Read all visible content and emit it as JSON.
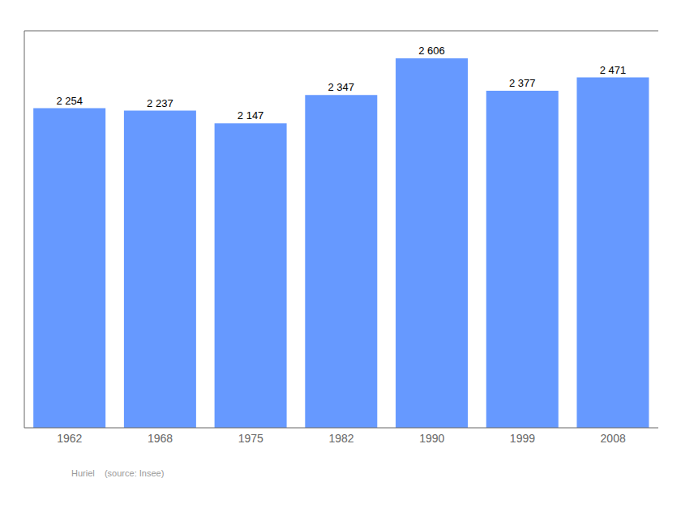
{
  "chart_data": {
    "type": "bar",
    "categories": [
      "1962",
      "1968",
      "1975",
      "1982",
      "1990",
      "1999",
      "2008"
    ],
    "values": [
      2254,
      2237,
      2147,
      2347,
      2606,
      2377,
      2471
    ],
    "value_labels": [
      "2 254",
      "2 237",
      "2 147",
      "2 347",
      "2 606",
      "2 377",
      "2 471"
    ],
    "data_labels": true,
    "color": "#6699FF",
    "ylim": [
      0,
      2800
    ],
    "yticks": [],
    "grid": false,
    "tick_labels": "x",
    "annotations": [
      "Huriel    (source: Insee)"
    ]
  }
}
